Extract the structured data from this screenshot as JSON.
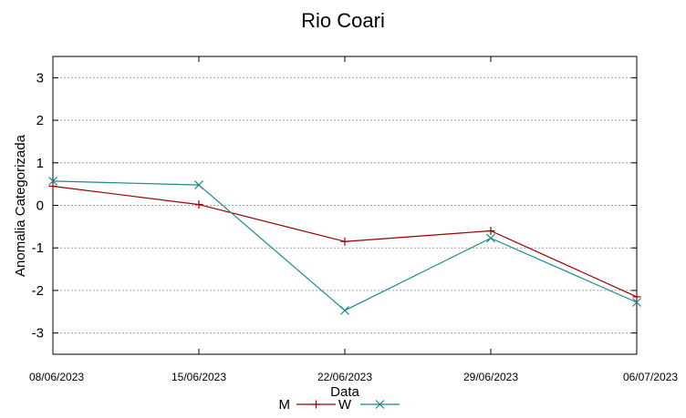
{
  "chart_data": {
    "type": "line",
    "title": "Rio Coari",
    "xlabel": "Data",
    "ylabel": "Anomalia Categorizada",
    "x": [
      "08/06/2023",
      "15/06/2023",
      "22/06/2023",
      "29/06/2023",
      "06/07/2023"
    ],
    "ylim": [
      -3.5,
      3.5
    ],
    "yticks": [
      3,
      2,
      1,
      0,
      -1,
      -2,
      -3
    ],
    "grid": "horizontal",
    "legend_position": "bottom-center",
    "series": [
      {
        "name": "M",
        "color": "#990000",
        "marker": "plus",
        "values": [
          0.45,
          0.02,
          -0.85,
          -0.6,
          -2.15
        ]
      },
      {
        "name": "W",
        "color": "#1a8a8a",
        "marker": "cross",
        "values": [
          0.57,
          0.48,
          -2.47,
          -0.77,
          -2.28
        ]
      }
    ]
  }
}
